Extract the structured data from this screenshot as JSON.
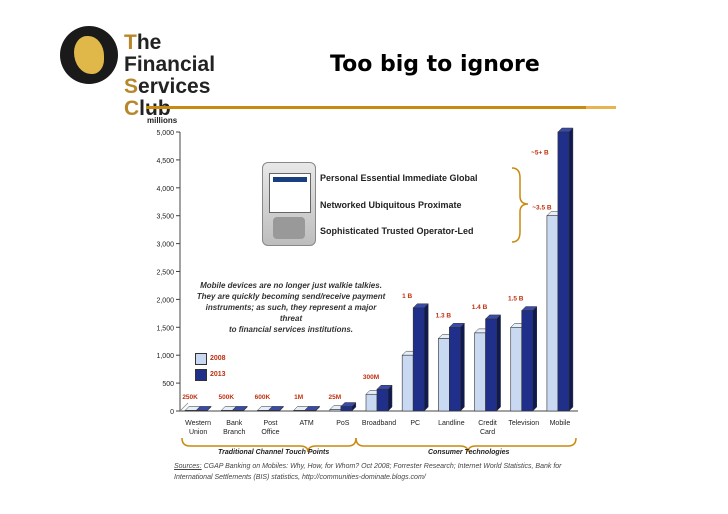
{
  "logo": {
    "line1_cap": "T",
    "line1": "he Financial",
    "line2_cap": "S",
    "line2": "ervices ",
    "line3_cap": "C",
    "line3": "lub"
  },
  "slide_title": "Too big to ignore",
  "attributes": [
    "Personal  Essential  Immediate  Global",
    "Networked   Ubiquitous   Proximate",
    "Sophisticated  Trusted  Operator-Led"
  ],
  "note": [
    "Mobile devices are no longer just walkie talkies.",
    "They are quickly becoming send/receive payment",
    "instruments; as such, they represent a major threat",
    "to financial services institutions."
  ],
  "bracket_labels": {
    "left": "Traditional Channel Touch Points",
    "right": "Consumer Technologies"
  },
  "sources": {
    "prefix": "Sources:",
    "text": " CGAP Banking on Mobiles: Why, How, for Whom? Oct 2008; Forrester Research; Internet World Statistics, Bank for International Settlements (BIS) statistics, http://communities-dominate.blogs.com/"
  },
  "colors": {
    "bar2008": "#c9d9f2",
    "bar2013": "#1f2f8a",
    "labels": "#c03010",
    "rule": "#c98a0e"
  },
  "chart_data": {
    "type": "bar",
    "ylabel": "millions",
    "ylim": [
      0,
      5000
    ],
    "yticks": [
      "0",
      "500",
      "1,000",
      "1,500",
      "2,000",
      "2,500",
      "3,000",
      "3,500",
      "4,000",
      "4,500",
      "5,000"
    ],
    "categories": [
      "Western Union",
      "Bank Branch",
      "Post Office",
      "ATM",
      "PoS",
      "Broadband",
      "PC",
      "Landline",
      "Credit Card",
      "Television",
      "Mobile"
    ],
    "series": [
      {
        "name": "2008",
        "values": [
          0.25,
          0.5,
          0.6,
          1,
          25,
          300,
          1000,
          1300,
          1400,
          1500,
          3500
        ]
      },
      {
        "name": "2013",
        "values": [
          0.25,
          0.5,
          0.6,
          1,
          80,
          390,
          1850,
          1500,
          1650,
          1800,
          5000
        ]
      }
    ],
    "data_labels": [
      "250K",
      "500K",
      "600K",
      "1M",
      "25M",
      "300M",
      "1 B",
      "1.3 B",
      "1.4 B",
      "1.5 B",
      "~3.5 B",
      "~5+ B"
    ]
  }
}
